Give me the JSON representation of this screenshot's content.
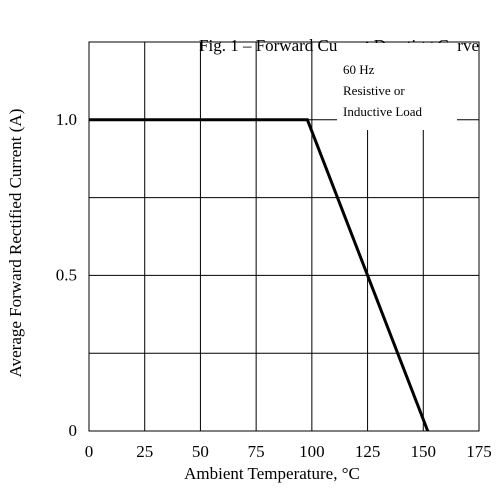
{
  "chart_data": {
    "type": "line",
    "title": "Fig. 1 – Forward Current Derating Curve",
    "xlabel": "Ambient Temperature, °C",
    "ylabel": "Average Forward Rectified Current (A)",
    "xlim": [
      0,
      175
    ],
    "ylim": [
      0,
      1.25
    ],
    "x_ticks": [
      0,
      25,
      50,
      75,
      100,
      125,
      150,
      175
    ],
    "x_tick_labels": [
      "0",
      "25",
      "50",
      "75",
      "100",
      "125",
      "150",
      "175"
    ],
    "y_ticks": [
      0,
      0.5,
      1.0
    ],
    "y_tick_labels": [
      "0",
      "0.5",
      "1.0"
    ],
    "grid": true,
    "series": [
      {
        "x": [
          0,
          98,
          152
        ],
        "y": [
          1.0,
          1.0,
          0
        ],
        "color": "#000000"
      }
    ],
    "annotations": [
      {
        "lines": [
          "60 Hz",
          "Resistive or",
          "Inductive Load"
        ],
        "position": "top-right"
      }
    ]
  }
}
